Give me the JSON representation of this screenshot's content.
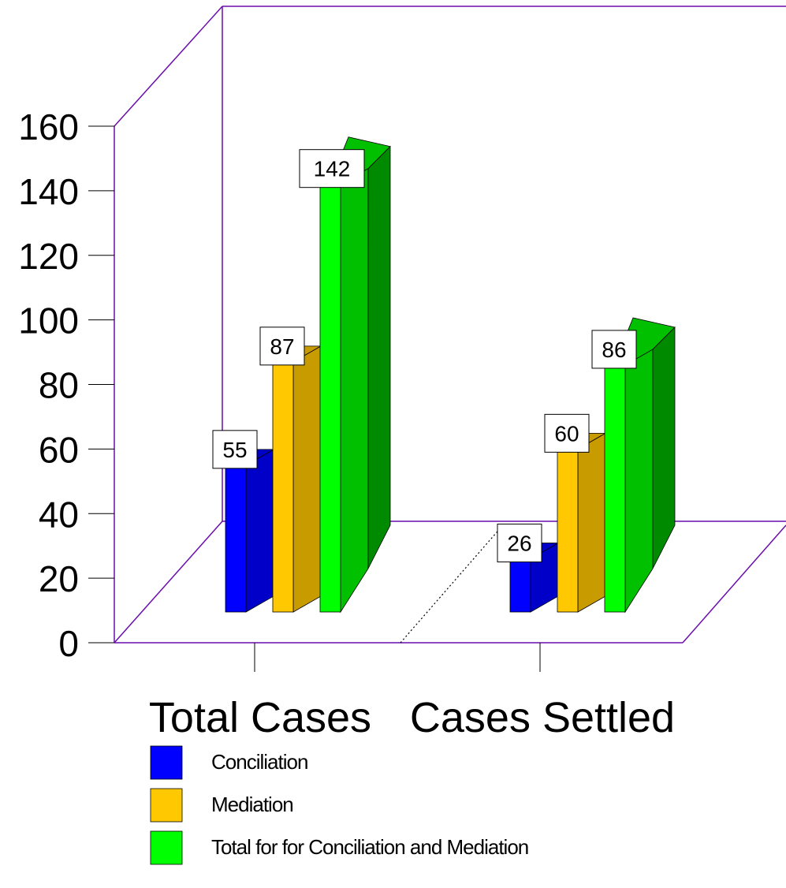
{
  "chart_data": {
    "type": "bar",
    "categories": [
      "Total Cases",
      "Cases Settled"
    ],
    "series": [
      {
        "name": "Conciliation",
        "values": [
          55,
          26
        ],
        "color": "#0000FF",
        "shade": "#0000C8"
      },
      {
        "name": "Mediation",
        "values": [
          87,
          60
        ],
        "color": "#FFC800",
        "shade": "#C89B00"
      },
      {
        "name": "Total for for Conciliation and Mediation",
        "values": [
          142,
          86
        ],
        "color": "#00FF00",
        "shade": "#00C000",
        "dark": "#008A00"
      }
    ],
    "yticks": [
      0,
      20,
      40,
      60,
      80,
      100,
      120,
      140,
      160
    ],
    "ylim": [
      0,
      160
    ],
    "title": "",
    "xlabel": "",
    "ylabel": "",
    "grid": false,
    "legend_position": "bottom",
    "frame_color": "#6A0DAD"
  }
}
